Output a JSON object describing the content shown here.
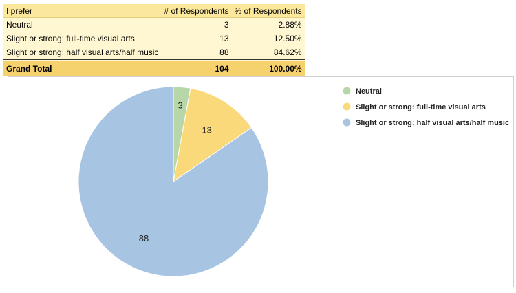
{
  "table": {
    "headers": [
      "I prefer",
      "# of Respondents",
      "% of Respondents"
    ],
    "rows": [
      [
        "Neutral",
        "3",
        "2.88%"
      ],
      [
        "Slight or strong: full-time visual arts",
        "13",
        "12.50%"
      ],
      [
        "Slight or strong: half visual arts/half music",
        "88",
        "84.62%"
      ]
    ],
    "total": [
      "Grand Total",
      "104",
      "100.00%"
    ]
  },
  "chart_data": {
    "type": "pie",
    "categories": [
      "Neutral",
      "Slight or strong: full-time visual arts",
      "Slight or strong: half visual arts/half music"
    ],
    "values": [
      3,
      13,
      88
    ],
    "data_labels": [
      "3",
      "13",
      "88"
    ],
    "colors": [
      "#b7d7a8",
      "#f9d97a",
      "#a8c4e3"
    ],
    "start": "12 o'clock, clockwise",
    "legend": "right"
  }
}
